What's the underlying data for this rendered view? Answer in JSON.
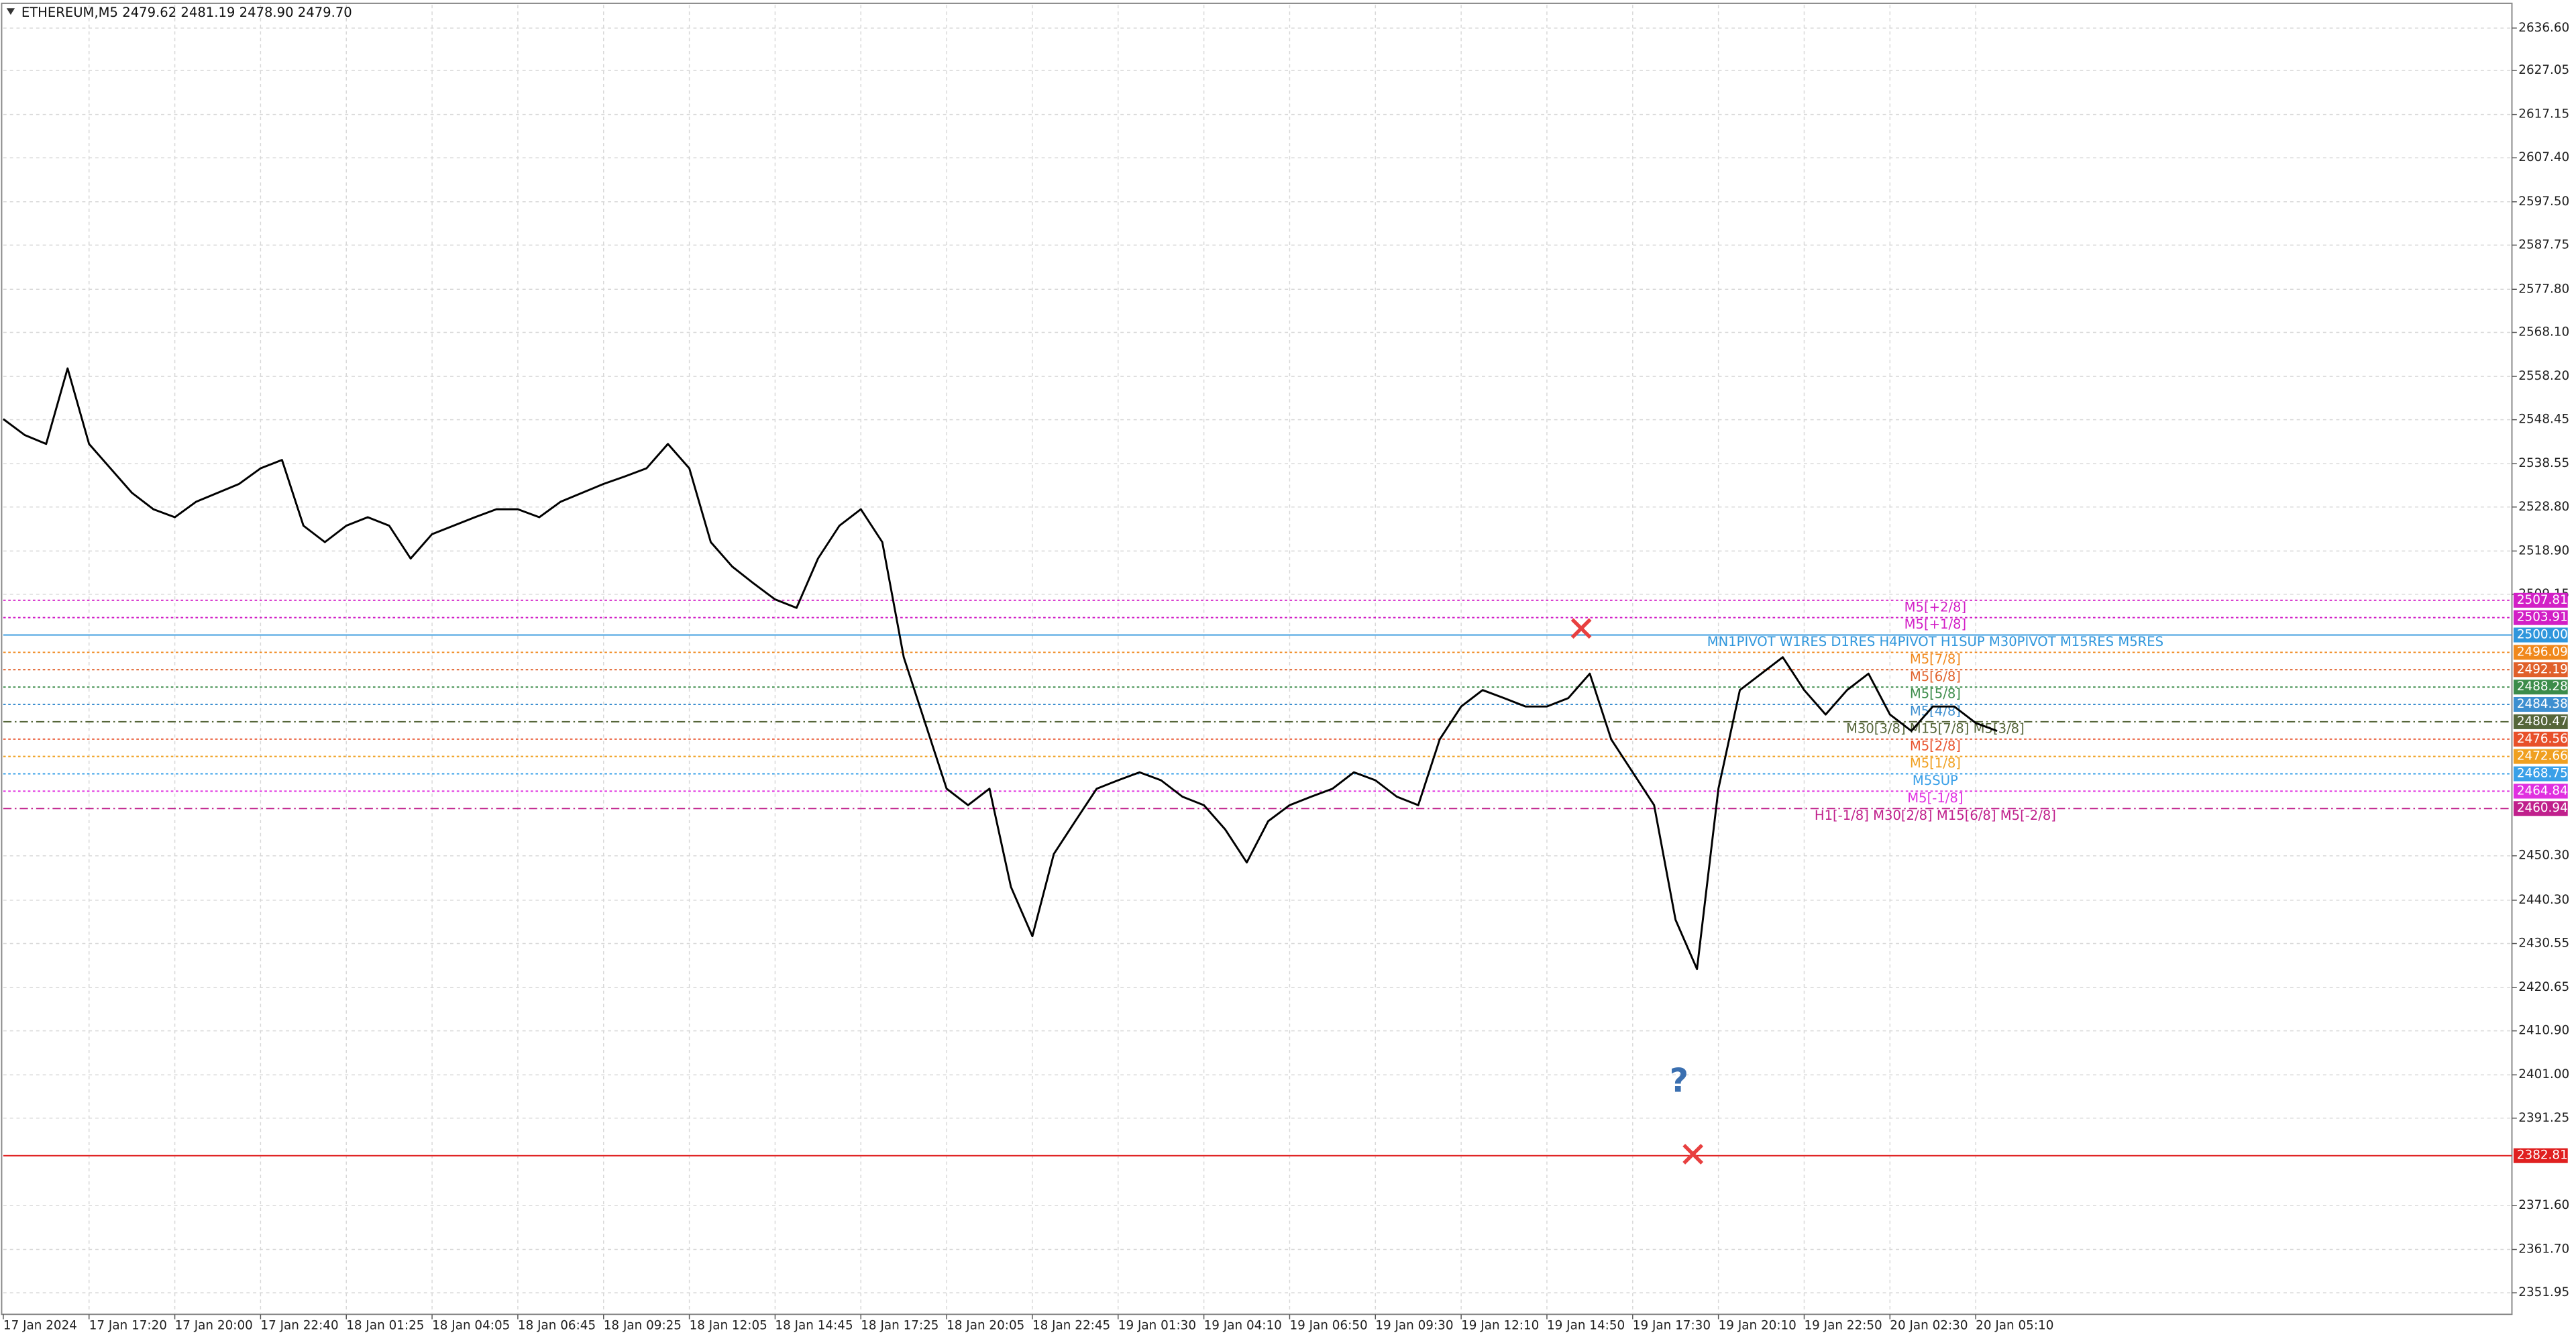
{
  "chart_data": {
    "type": "line",
    "title": "ETHEREUM,M5  2479.62 2481.19 2478.90 2479.70",
    "color": "#000000",
    "grid": true,
    "ylim": [
      2347.1,
      2641.8
    ],
    "yticks": [
      {
        "value": 2636.6,
        "label": "2636.60"
      },
      {
        "value": 2627.05,
        "label": "2627.05"
      },
      {
        "value": 2617.15,
        "label": "2617.15"
      },
      {
        "value": 2607.4,
        "label": "2607.40"
      },
      {
        "value": 2597.5,
        "label": "2597.50"
      },
      {
        "value": 2587.75,
        "label": "2587.75"
      },
      {
        "value": 2577.8,
        "label": "2577.80"
      },
      {
        "value": 2568.1,
        "label": "2568.10"
      },
      {
        "value": 2558.2,
        "label": "2558.20"
      },
      {
        "value": 2548.45,
        "label": "2548.45"
      },
      {
        "value": 2538.55,
        "label": "2538.55"
      },
      {
        "value": 2528.8,
        "label": "2528.80"
      },
      {
        "value": 2518.9,
        "label": "2518.90"
      },
      {
        "value": 2509.15,
        "label": "2509.15"
      },
      {
        "value": 2450.3,
        "label": "2450.30"
      },
      {
        "value": 2440.3,
        "label": "2440.30"
      },
      {
        "value": 2430.55,
        "label": "2430.55"
      },
      {
        "value": 2420.65,
        "label": "2420.65"
      },
      {
        "value": 2410.9,
        "label": "2410.90"
      },
      {
        "value": 2401,
        "label": "2401.00"
      },
      {
        "value": 2391.25,
        "label": "2391.25"
      },
      {
        "value": 2371.6,
        "label": "2371.60"
      },
      {
        "value": 2361.7,
        "label": "2361.70"
      },
      {
        "value": 2351.95,
        "label": "2351.95"
      }
    ],
    "categories": [
      "17 Jan 2024",
      null,
      null,
      null,
      "17 Jan 17:20",
      null,
      null,
      null,
      "17 Jan 20:00",
      null,
      null,
      null,
      "17 Jan 22:40",
      null,
      null,
      null,
      "18 Jan 01:25",
      null,
      null,
      null,
      "18 Jan 04:05",
      null,
      null,
      null,
      "18 Jan 06:45",
      null,
      null,
      null,
      "18 Jan 09:25",
      null,
      null,
      null,
      "18 Jan 12:05",
      null,
      null,
      null,
      "18 Jan 14:45",
      null,
      null,
      null,
      "18 Jan 17:25",
      null,
      null,
      null,
      "18 Jan 20:05",
      null,
      null,
      null,
      "18 Jan 22:45",
      null,
      null,
      null,
      "19 Jan 01:30",
      null,
      null,
      null,
      "19 Jan 04:10",
      null,
      null,
      null,
      "19 Jan 06:50",
      null,
      null,
      null,
      "19 Jan 09:30",
      null,
      null,
      null,
      "19 Jan 12:10",
      null,
      null,
      null,
      "19 Jan 14:50",
      null,
      null,
      null,
      "19 Jan 17:30",
      null,
      null,
      null,
      "19 Jan 20:10",
      null,
      null,
      null,
      "19 Jan 22:50",
      null,
      null,
      null,
      "20 Jan 02:30",
      null,
      null,
      null,
      "20 Jan 05:10",
      null,
      null,
      null
    ],
    "values": [
      2548.6,
      2545,
      2543,
      2560,
      2543,
      2537.5,
      2532,
      2528.3,
      2526.5,
      2530,
      2532,
      2534,
      2537.5,
      2539.4,
      2524.6,
      2520.9,
      2524.6,
      2526.5,
      2524.6,
      2517.2,
      2522.7,
      2524.6,
      2526.5,
      2528.3,
      2528.3,
      2526.5,
      2530,
      2532,
      2534,
      2535.7,
      2537.5,
      2543,
      2537.5,
      2520.9,
      2515.4,
      2511.6,
      2508,
      2506.1,
      2517.2,
      2524.6,
      2528.3,
      2520.9,
      2495,
      2480.2,
      2465.4,
      2461.7,
      2465.4,
      2443.3,
      2432.2,
      2450.7,
      2458.1,
      2465.4,
      2467.3,
      2469.1,
      2467.3,
      2463.6,
      2461.7,
      2456.2,
      2448.8,
      2458.1,
      2461.7,
      2463.6,
      2465.4,
      2469.1,
      2467.3,
      2463.6,
      2461.7,
      2476.5,
      2483.9,
      2487.6,
      2485.8,
      2483.9,
      2483.9,
      2485.8,
      2491.3,
      2476.5,
      2469.1,
      2461.7,
      2435.9,
      2424.8,
      2465.4,
      2487.6,
      2491.3,
      2495,
      2487.6,
      2482.1,
      2487.6,
      2491.3,
      2482.1,
      2478.4,
      2483.9,
      2483.9,
      2480.2,
      2478.4,
      null,
      null
    ],
    "levels": [
      {
        "value": 2507.81,
        "label": "2507.81",
        "color": "#d21fc6",
        "style": "dot",
        "text": "M5[+2/8]"
      },
      {
        "value": 2503.91,
        "label": "2503.91",
        "color": "#d21fc6",
        "style": "dot",
        "text": "M5[+1/8]"
      },
      {
        "value": 2500,
        "label": "2500.00",
        "color": "#2f96dc",
        "style": "solid",
        "text": "MN1PIVOT W1RES D1RES H4PIVOT H1SUP M30PIVOT M15RES M5RES"
      },
      {
        "value": 2496.09,
        "label": "2496.09",
        "color": "#f0881c",
        "style": "dot",
        "text": "M5[7/8]"
      },
      {
        "value": 2492.19,
        "label": "2492.19",
        "color": "#e0602a",
        "style": "dot",
        "text": "M5[6/8]"
      },
      {
        "value": 2488.28,
        "label": "2488.28",
        "color": "#3c8c4a",
        "style": "dot",
        "text": "M5[5/8]"
      },
      {
        "value": 2484.38,
        "label": "2484.38",
        "color": "#3d8fd0",
        "style": "dot",
        "text": "M5[4/8]"
      },
      {
        "value": 2480.47,
        "label": "2480.47",
        "color": "#56663a",
        "style": "dashdot",
        "text": "M30[3/8] M15[7/8] M5[3/8]"
      },
      {
        "value": 2476.56,
        "label": "2476.56",
        "color": "#e8502a",
        "style": "dot",
        "text": "M5[2/8]"
      },
      {
        "value": 2472.66,
        "label": "2472.66",
        "color": "#f0a020",
        "style": "dot",
        "text": "M5[1/8]"
      },
      {
        "value": 2468.75,
        "label": "2468.75",
        "color": "#3aa0e8",
        "style": "dot",
        "text": "M5SUP"
      },
      {
        "value": 2464.84,
        "label": "2464.84",
        "color": "#e030e0",
        "style": "dot",
        "text": "M5[-1/8]"
      },
      {
        "value": 2460.94,
        "label": "2460.94",
        "color": "#c0208c",
        "style": "dashdot",
        "text": "H1[-1/8] M30[2/8] M15[6/8] M5[-2/8]"
      },
      {
        "value": 2382.81,
        "label": "2382.81",
        "color": "#e02020",
        "style": "solid"
      }
    ]
  }
}
